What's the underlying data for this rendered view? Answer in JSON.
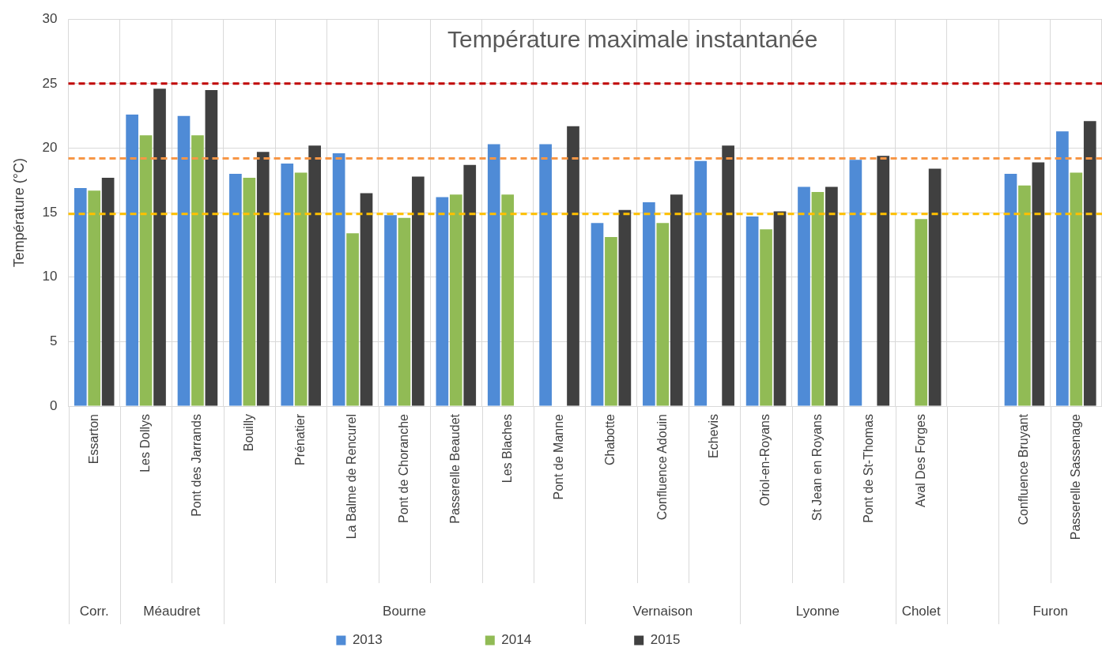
{
  "chart_data": {
    "type": "bar",
    "title": "Température maximale instantanée",
    "ylabel": "Température (°C)",
    "categories": [
      "Essarton",
      "Les Dollys",
      "Pont des Jarrands",
      "Bouilly",
      "Prénatier",
      "La Balme de Rencurel",
      "Pont de Choranche",
      "Passerelle Beaudet",
      "Les Blaches",
      "Pont de Manne",
      "Chabotte",
      "Confluence Adouin",
      "Echevis",
      "Oriol-en-Royans",
      "St Jean en Royans",
      "Pont de St-Thomas",
      "Aval Des Forges",
      null,
      "Confluence Bruyant",
      "Passerelle Sassenage"
    ],
    "series": [
      {
        "name": "2013",
        "color": "#4f8bd6",
        "values": [
          16.9,
          22.6,
          22.5,
          18.0,
          18.8,
          19.6,
          14.8,
          16.2,
          20.3,
          20.3,
          14.2,
          15.8,
          19.0,
          14.7,
          17.0,
          19.1,
          null,
          null,
          18.0,
          21.3
        ]
      },
      {
        "name": "2014",
        "color": "#91bb55",
        "values": [
          16.7,
          21.0,
          21.0,
          17.7,
          18.1,
          13.4,
          14.6,
          16.4,
          16.4,
          null,
          13.1,
          14.2,
          null,
          13.7,
          16.6,
          null,
          14.5,
          null,
          17.1,
          18.1
        ]
      },
      {
        "name": "2015",
        "color": "#404040",
        "values": [
          17.7,
          24.6,
          24.5,
          19.7,
          20.2,
          16.5,
          17.8,
          18.7,
          null,
          21.7,
          15.2,
          16.4,
          20.2,
          15.1,
          17.0,
          19.4,
          18.4,
          null,
          18.9,
          22.1
        ]
      }
    ],
    "ylim": [
      0,
      30
    ],
    "yticks": [
      0,
      5,
      10,
      15,
      20,
      25,
      30
    ],
    "grid": true,
    "legend": "bottom",
    "ref_lines": [
      {
        "axis": "y",
        "value": 25,
        "color": "#c00000",
        "line_style": "dashed"
      },
      {
        "axis": "y",
        "value": 19.2,
        "color": "#f79646",
        "line_style": "dashed"
      },
      {
        "axis": "y",
        "value": 14.9,
        "color": "#ffc000",
        "line_style": "dashed"
      }
    ],
    "annotations": [
      "Corr.",
      "Méaudret",
      "Bourne",
      "Vernaison",
      "Lyonne",
      "Cholet",
      "Furon"
    ]
  }
}
